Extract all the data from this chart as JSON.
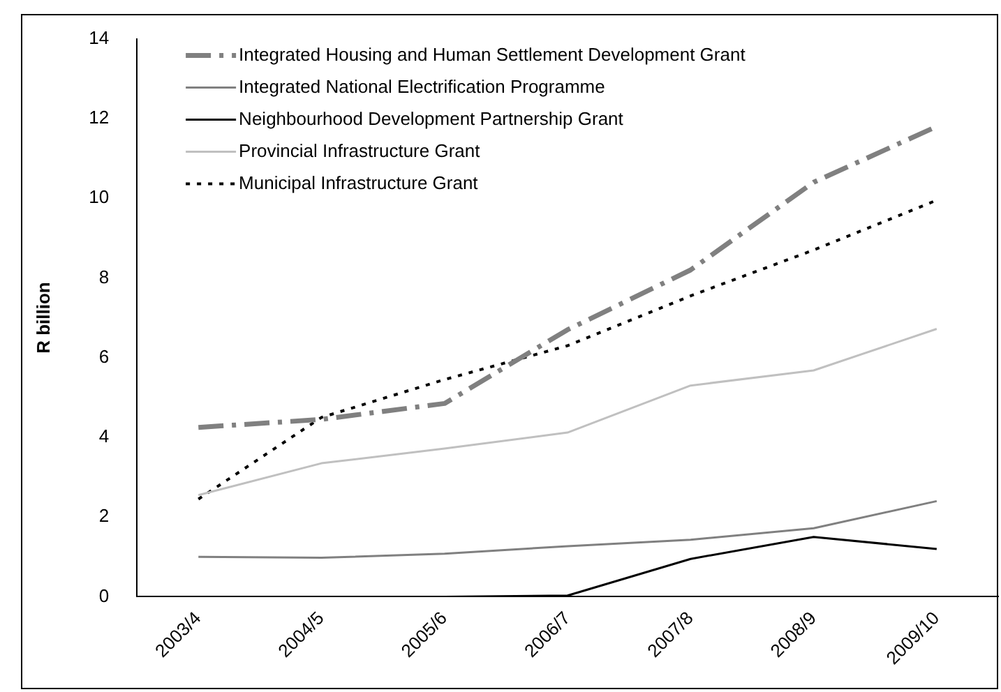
{
  "chart_data": {
    "type": "line",
    "ylabel": "R billion",
    "categories": [
      "2003/4",
      "2004/5",
      "2005/6",
      "2006/7",
      "2007/8",
      "2008/9",
      "2009/10"
    ],
    "ylim": [
      0,
      14
    ],
    "yticks": [
      0,
      2,
      4,
      6,
      8,
      10,
      12,
      14
    ],
    "grid": false,
    "legend": "top left",
    "marker": "none",
    "series": [
      {
        "name": "Integrated Housing and Human Settlement Development Grant",
        "color": "#808080",
        "line_style": "dashed",
        "values": [
          4.25,
          4.45,
          4.85,
          6.7,
          8.2,
          10.4,
          11.8
        ]
      },
      {
        "name": "Integrated National Electrification Programme",
        "color": "#808080",
        "line_style": "solid",
        "values": [
          1.0,
          0.98,
          1.08,
          1.27,
          1.43,
          1.72,
          2.4
        ]
      },
      {
        "name": "Neighbourhood Development Partnership Grant",
        "color": "#000000",
        "line_style": "solid",
        "values": [
          0,
          0,
          0,
          0.03,
          0.95,
          1.5,
          1.2
        ]
      },
      {
        "name": "Provincial Infrastructure Grant",
        "color": "#c0c0c0",
        "line_style": "solid",
        "values": [
          2.55,
          3.35,
          3.72,
          4.12,
          5.3,
          5.68,
          6.72
        ]
      },
      {
        "name": "Municipal Infrastructure Grant",
        "color": "#000000",
        "line_style": "dotted",
        "values": [
          2.45,
          4.5,
          5.45,
          6.3,
          7.55,
          8.7,
          9.95
        ]
      }
    ]
  }
}
